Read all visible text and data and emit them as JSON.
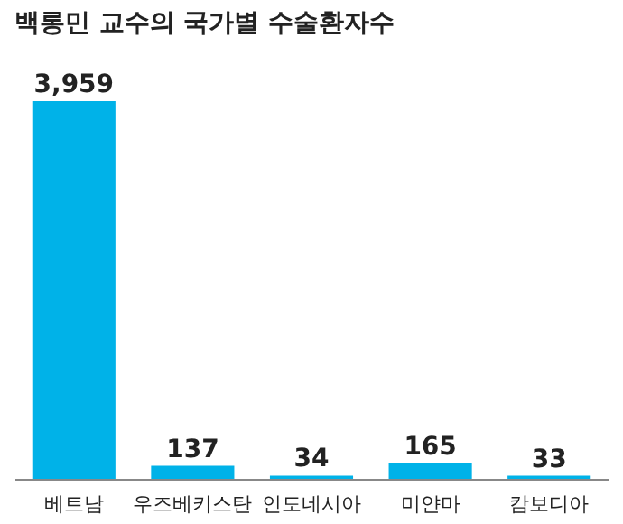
{
  "chart_data": {
    "type": "bar",
    "title": "백롱민 교수의 국가별 수술환자수",
    "categories": [
      "베트남",
      "우즈베키스탄",
      "인도네시아",
      "미얀마",
      "캄보디아"
    ],
    "values": [
      3959,
      137,
      34,
      165,
      33
    ],
    "value_labels": [
      "3,959",
      "137",
      "34",
      "165",
      "33"
    ],
    "color": "#00b2e8",
    "grid": false
  }
}
